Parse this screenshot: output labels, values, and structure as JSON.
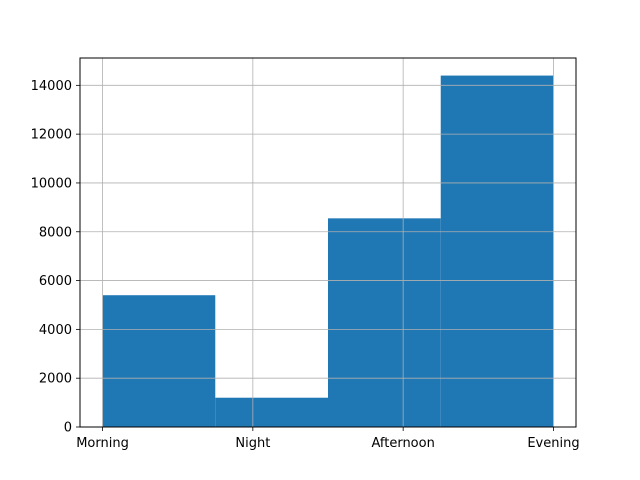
{
  "chart_data": {
    "type": "bar",
    "title": "",
    "xlabel": "",
    "ylabel": "",
    "x_ticks": [
      "Morning",
      "Night",
      "Afternoon",
      "Evening"
    ],
    "bins": [
      {
        "range": [
          0,
          0.75
        ],
        "value": 5400
      },
      {
        "range": [
          0.75,
          1.5
        ],
        "value": 1200
      },
      {
        "range": [
          1.5,
          2.25
        ],
        "value": 8550
      },
      {
        "range": [
          2.25,
          3
        ],
        "value": 14400
      }
    ],
    "xlim": [
      -0.15,
      3.15
    ],
    "ylim": [
      0,
      15120
    ],
    "y_ticks": [
      0,
      2000,
      4000,
      6000,
      8000,
      10000,
      12000,
      14000
    ],
    "grid": true,
    "bar_color": "#1f77b4",
    "grid_color": "#b0b0b0"
  }
}
